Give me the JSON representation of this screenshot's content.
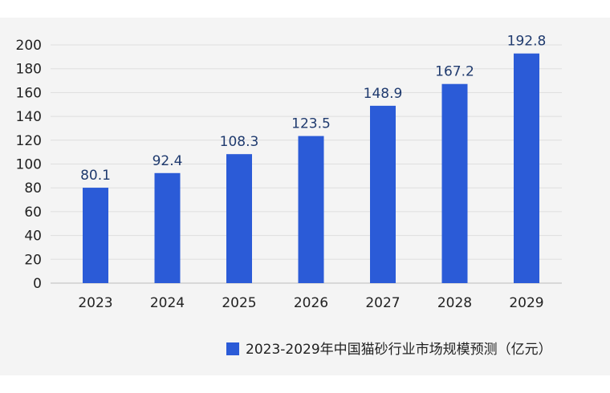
{
  "chart_data": {
    "type": "bar",
    "title": "",
    "xlabel": "",
    "ylabel": "",
    "categories": [
      "2023",
      "2024",
      "2025",
      "2026",
      "2027",
      "2028",
      "2029"
    ],
    "series": [
      {
        "name": "2023-2029年中国猫砂行业市场规模预测（亿元）",
        "values": [
          80.1,
          92.4,
          108.3,
          123.5,
          148.9,
          167.2,
          192.8
        ],
        "data_labels": [
          "80.1",
          "92.4",
          "108.3",
          "123.5",
          "148.9",
          "167.2",
          "192.8"
        ],
        "color": "#2b5bd7"
      }
    ],
    "ylim": [
      0,
      200
    ],
    "yticks": [
      "0",
      "20",
      "40",
      "60",
      "80",
      "100",
      "120",
      "140",
      "160",
      "180",
      "200"
    ],
    "grid": true,
    "legend_position": "bottom-right"
  }
}
